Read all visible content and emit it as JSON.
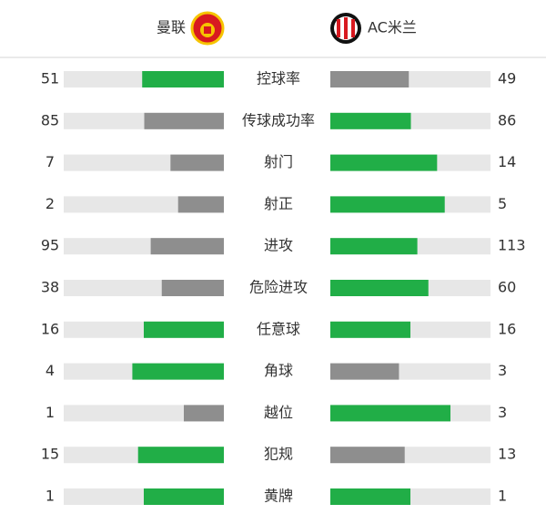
{
  "chart_data": {
    "type": "diverging-bar",
    "categories": [
      "控球率",
      "传球成功率",
      "射门",
      "射正",
      "进攻",
      "危险进攻",
      "任意球",
      "角球",
      "越位",
      "犯规",
      "黄牌"
    ],
    "series": [
      {
        "name": "曼联",
        "values": [
          51,
          85,
          7,
          2,
          95,
          38,
          16,
          4,
          1,
          15,
          1
        ]
      },
      {
        "name": "AC米兰",
        "values": [
          49,
          86,
          14,
          5,
          113,
          60,
          16,
          3,
          3,
          13,
          1
        ]
      }
    ],
    "colors": {
      "higher": "#21ae47",
      "lower": "#8e8e8e",
      "track": "#e7e7e7"
    }
  }
}
